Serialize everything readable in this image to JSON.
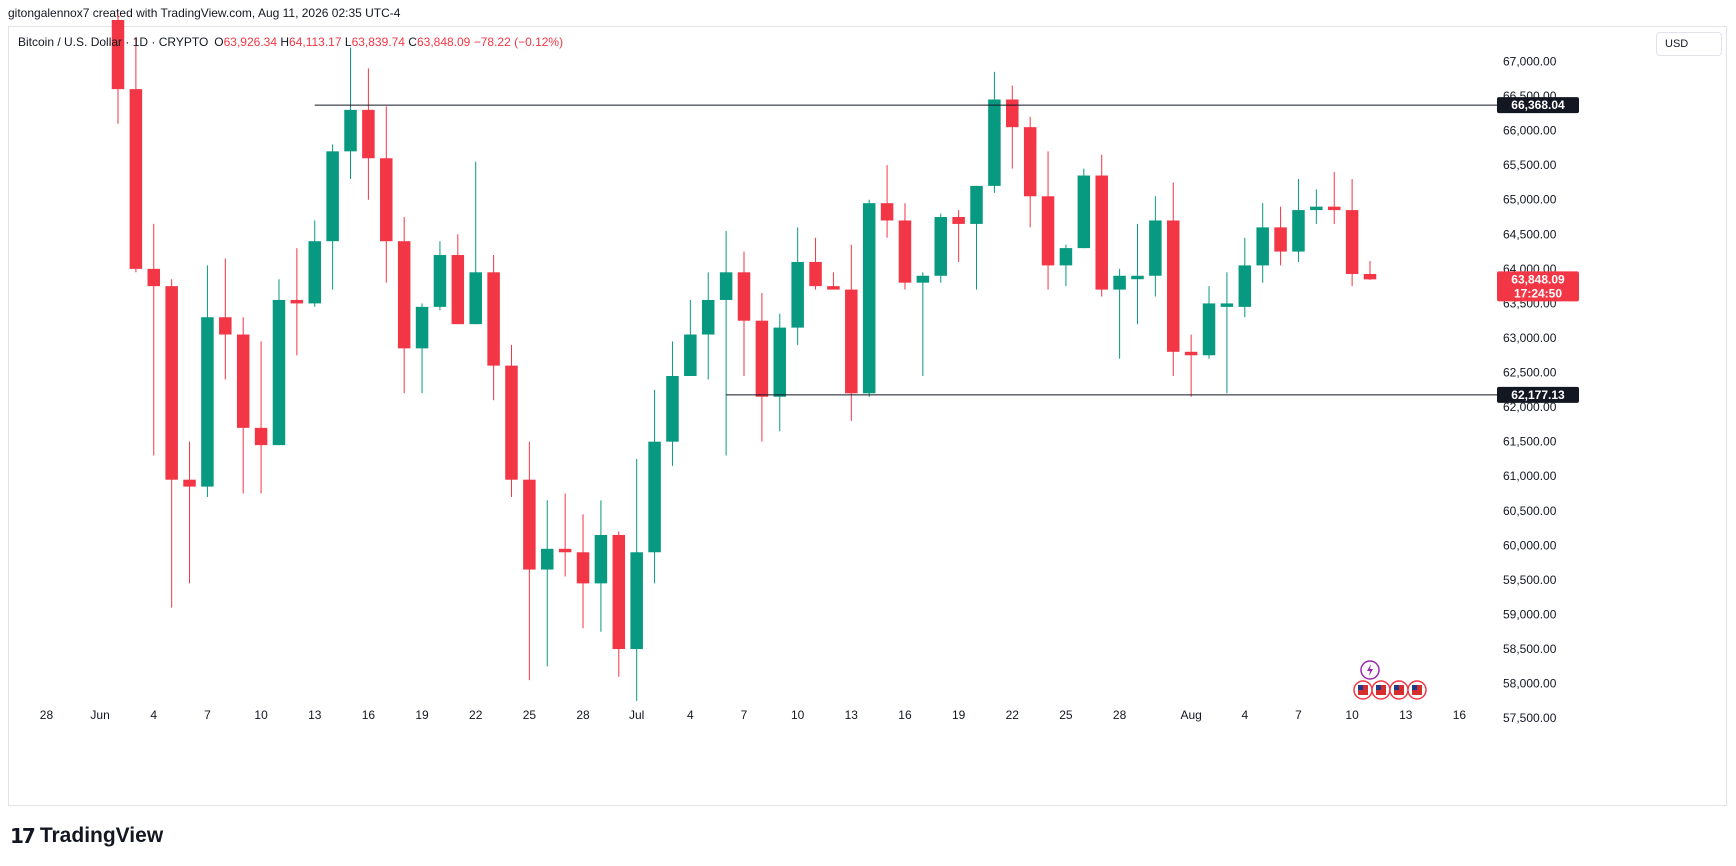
{
  "credit": "gitongalennox7 created with TradingView.com, Aug 11, 2026 02:35 UTC-4",
  "legend": {
    "symbol": "Bitcoin / U.S. Dollar · 1D · CRYPTO",
    "o_label": "O",
    "o_value": "63,926.34",
    "h_label": "H",
    "h_value": "64,113.17",
    "l_label": "L",
    "l_value": "63,839.74",
    "c_label": "C",
    "c_value": "63,848.09",
    "change": "−78.22 (−0.12%)"
  },
  "currency_button": "USD",
  "brand": "TradingView",
  "colors": {
    "up": "#089981",
    "down": "#f23645",
    "hline": "#131722",
    "grid": "#e0e3eb"
  },
  "icons": [
    "lightning-icon",
    "us-flag-icon"
  ],
  "chart_data": {
    "type": "candlestick",
    "symbol": "BTCUSD",
    "interval": "1D",
    "y_ticks": [
      "67,000.00",
      "66,500.00",
      "66,000.00",
      "65,500.00",
      "65,000.00",
      "64,500.00",
      "64,000.00",
      "63,500.00",
      "63,000.00",
      "62,500.00",
      "62,000.00",
      "61,500.00",
      "61,000.00",
      "60,500.00",
      "60,000.00",
      "59,500.00",
      "59,000.00",
      "58,500.00",
      "58,000.00",
      "57,500.00"
    ],
    "y_tick_values": [
      67000,
      66500,
      66000,
      65500,
      65000,
      64500,
      64000,
      63500,
      63000,
      62500,
      62000,
      61500,
      61000,
      60500,
      60000,
      59500,
      59000,
      58500,
      58000,
      57500
    ],
    "ylim": [
      57300,
      67600
    ],
    "x_ticks": [
      {
        "label": "28",
        "day": -4
      },
      {
        "label": "Jun",
        "day": -1
      },
      {
        "label": "4",
        "day": 2
      },
      {
        "label": "7",
        "day": 5
      },
      {
        "label": "10",
        "day": 8
      },
      {
        "label": "13",
        "day": 11
      },
      {
        "label": "16",
        "day": 14
      },
      {
        "label": "19",
        "day": 17
      },
      {
        "label": "22",
        "day": 20
      },
      {
        "label": "25",
        "day": 23
      },
      {
        "label": "28",
        "day": 26
      },
      {
        "label": "Jul",
        "day": 29
      },
      {
        "label": "4",
        "day": 32
      },
      {
        "label": "7",
        "day": 35
      },
      {
        "label": "10",
        "day": 38
      },
      {
        "label": "13",
        "day": 41
      },
      {
        "label": "16",
        "day": 44
      },
      {
        "label": "19",
        "day": 47
      },
      {
        "label": "22",
        "day": 50
      },
      {
        "label": "25",
        "day": 53
      },
      {
        "label": "28",
        "day": 56
      },
      {
        "label": "Aug",
        "day": 60
      },
      {
        "label": "4",
        "day": 63
      },
      {
        "label": "7",
        "day": 66
      },
      {
        "label": "10",
        "day": 69
      },
      {
        "label": "13",
        "day": 72
      },
      {
        "label": "16",
        "day": 75
      }
    ],
    "x_range": [
      -5,
      78
    ],
    "candles": [
      {
        "day": 0,
        "o": 67600,
        "h": 67700,
        "l": 66100,
        "c": 66600
      },
      {
        "day": 1,
        "o": 66600,
        "h": 67350,
        "l": 63950,
        "c": 64000
      },
      {
        "day": 2,
        "o": 64000,
        "h": 64650,
        "l": 61300,
        "c": 63750
      },
      {
        "day": 3,
        "o": 63750,
        "h": 63850,
        "l": 59100,
        "c": 60950
      },
      {
        "day": 4,
        "o": 60950,
        "h": 61500,
        "l": 59450,
        "c": 60850
      },
      {
        "day": 5,
        "o": 60850,
        "h": 64050,
        "l": 60700,
        "c": 63300
      },
      {
        "day": 6,
        "o": 63300,
        "h": 64150,
        "l": 62400,
        "c": 63050
      },
      {
        "day": 7,
        "o": 63050,
        "h": 63300,
        "l": 60750,
        "c": 61700
      },
      {
        "day": 8,
        "o": 61700,
        "h": 62950,
        "l": 60750,
        "c": 61450
      },
      {
        "day": 9,
        "o": 61450,
        "h": 63850,
        "l": 61450,
        "c": 63550
      },
      {
        "day": 10,
        "o": 63550,
        "h": 64300,
        "l": 62750,
        "c": 63500
      },
      {
        "day": 11,
        "o": 63500,
        "h": 64700,
        "l": 63450,
        "c": 64400
      },
      {
        "day": 12,
        "o": 64400,
        "h": 65800,
        "l": 63700,
        "c": 65700
      },
      {
        "day": 13,
        "o": 65700,
        "h": 67200,
        "l": 65300,
        "c": 66300
      },
      {
        "day": 14,
        "o": 66300,
        "h": 66900,
        "l": 65000,
        "c": 65600
      },
      {
        "day": 15,
        "o": 65600,
        "h": 66350,
        "l": 63800,
        "c": 64400
      },
      {
        "day": 16,
        "o": 64400,
        "h": 64750,
        "l": 62200,
        "c": 62850
      },
      {
        "day": 17,
        "o": 62850,
        "h": 63500,
        "l": 62200,
        "c": 63450
      },
      {
        "day": 18,
        "o": 63450,
        "h": 64400,
        "l": 63400,
        "c": 64200
      },
      {
        "day": 19,
        "o": 64200,
        "h": 64500,
        "l": 63200,
        "c": 63200
      },
      {
        "day": 20,
        "o": 63200,
        "h": 65550,
        "l": 63200,
        "c": 63950
      },
      {
        "day": 21,
        "o": 63950,
        "h": 64200,
        "l": 62100,
        "c": 62600
      },
      {
        "day": 22,
        "o": 62600,
        "h": 62900,
        "l": 60700,
        "c": 60950
      },
      {
        "day": 23,
        "o": 60950,
        "h": 61500,
        "l": 58050,
        "c": 59650
      },
      {
        "day": 24,
        "o": 59650,
        "h": 60650,
        "l": 58250,
        "c": 59950
      },
      {
        "day": 25,
        "o": 59950,
        "h": 60750,
        "l": 59550,
        "c": 59900
      },
      {
        "day": 26,
        "o": 59900,
        "h": 60450,
        "l": 58800,
        "c": 59450
      },
      {
        "day": 27,
        "o": 59450,
        "h": 60650,
        "l": 58750,
        "c": 60150
      },
      {
        "day": 28,
        "o": 60150,
        "h": 60200,
        "l": 58100,
        "c": 58500
      },
      {
        "day": 29,
        "o": 58500,
        "h": 61250,
        "l": 57750,
        "c": 59900
      },
      {
        "day": 30,
        "o": 59900,
        "h": 62250,
        "l": 59450,
        "c": 61500
      },
      {
        "day": 31,
        "o": 61500,
        "h": 62950,
        "l": 61150,
        "c": 62450
      },
      {
        "day": 32,
        "o": 62450,
        "h": 63550,
        "l": 62450,
        "c": 63050
      },
      {
        "day": 33,
        "o": 63050,
        "h": 63950,
        "l": 62400,
        "c": 63550
      },
      {
        "day": 34,
        "o": 63550,
        "h": 64550,
        "l": 61300,
        "c": 63950
      },
      {
        "day": 35,
        "o": 63950,
        "h": 64250,
        "l": 62450,
        "c": 63250
      },
      {
        "day": 36,
        "o": 63250,
        "h": 63650,
        "l": 61500,
        "c": 62150
      },
      {
        "day": 37,
        "o": 62150,
        "h": 63350,
        "l": 61650,
        "c": 63150
      },
      {
        "day": 38,
        "o": 63150,
        "h": 64600,
        "l": 62900,
        "c": 64100
      },
      {
        "day": 39,
        "o": 64100,
        "h": 64450,
        "l": 63700,
        "c": 63750
      },
      {
        "day": 40,
        "o": 63750,
        "h": 63950,
        "l": 63700,
        "c": 63700
      },
      {
        "day": 41,
        "o": 63700,
        "h": 64350,
        "l": 61800,
        "c": 62200
      },
      {
        "day": 42,
        "o": 62200,
        "h": 65000,
        "l": 62150,
        "c": 64950
      },
      {
        "day": 43,
        "o": 64950,
        "h": 65500,
        "l": 64450,
        "c": 64700
      },
      {
        "day": 44,
        "o": 64700,
        "h": 64950,
        "l": 63700,
        "c": 63800
      },
      {
        "day": 45,
        "o": 63800,
        "h": 63950,
        "l": 62450,
        "c": 63900
      },
      {
        "day": 46,
        "o": 63900,
        "h": 64800,
        "l": 63800,
        "c": 64750
      },
      {
        "day": 47,
        "o": 64750,
        "h": 64850,
        "l": 64100,
        "c": 64650
      },
      {
        "day": 48,
        "o": 64650,
        "h": 65200,
        "l": 63700,
        "c": 65200
      },
      {
        "day": 49,
        "o": 65200,
        "h": 66850,
        "l": 65100,
        "c": 66450
      },
      {
        "day": 50,
        "o": 66450,
        "h": 66650,
        "l": 65450,
        "c": 66050
      },
      {
        "day": 51,
        "o": 66050,
        "h": 66200,
        "l": 64600,
        "c": 65050
      },
      {
        "day": 52,
        "o": 65050,
        "h": 65700,
        "l": 63700,
        "c": 64050
      },
      {
        "day": 53,
        "o": 64050,
        "h": 64350,
        "l": 63750,
        "c": 64300
      },
      {
        "day": 54,
        "o": 64300,
        "h": 65450,
        "l": 64300,
        "c": 65350
      },
      {
        "day": 55,
        "o": 65350,
        "h": 65650,
        "l": 63600,
        "c": 63700
      },
      {
        "day": 56,
        "o": 63700,
        "h": 64000,
        "l": 62700,
        "c": 63900
      },
      {
        "day": 57,
        "o": 63850,
        "h": 64650,
        "l": 63200,
        "c": 63900
      },
      {
        "day": 58,
        "o": 63900,
        "h": 65050,
        "l": 63600,
        "c": 64700
      },
      {
        "day": 59,
        "o": 64700,
        "h": 65250,
        "l": 62450,
        "c": 62800
      },
      {
        "day": 60,
        "o": 62800,
        "h": 63050,
        "l": 62150,
        "c": 62750
      },
      {
        "day": 61,
        "o": 62750,
        "h": 63750,
        "l": 62700,
        "c": 63500
      },
      {
        "day": 62,
        "o": 63450,
        "h": 63950,
        "l": 62200,
        "c": 63500
      },
      {
        "day": 63,
        "o": 63450,
        "h": 64450,
        "l": 63300,
        "c": 64050
      },
      {
        "day": 64,
        "o": 64050,
        "h": 64950,
        "l": 63800,
        "c": 64600
      },
      {
        "day": 65,
        "o": 64600,
        "h": 64900,
        "l": 64050,
        "c": 64250
      },
      {
        "day": 66,
        "o": 64250,
        "h": 65300,
        "l": 64100,
        "c": 64850
      },
      {
        "day": 67,
        "o": 64850,
        "h": 65150,
        "l": 64650,
        "c": 64900
      },
      {
        "day": 68,
        "o": 64900,
        "h": 65400,
        "l": 64650,
        "c": 64850
      },
      {
        "day": 69,
        "o": 64850,
        "h": 65300,
        "l": 63750,
        "c": 63926
      },
      {
        "day": 70,
        "o": 63926,
        "h": 64113,
        "l": 63840,
        "c": 63848
      }
    ],
    "hlines": [
      {
        "value": 66368.04,
        "label": "66,368.04",
        "from_day": 11
      },
      {
        "value": 62177.13,
        "label": "62,177.13",
        "from_day": 34
      }
    ],
    "last_price": {
      "label": "63,848.09",
      "countdown": "17:24:50",
      "value": 63848.09
    }
  }
}
